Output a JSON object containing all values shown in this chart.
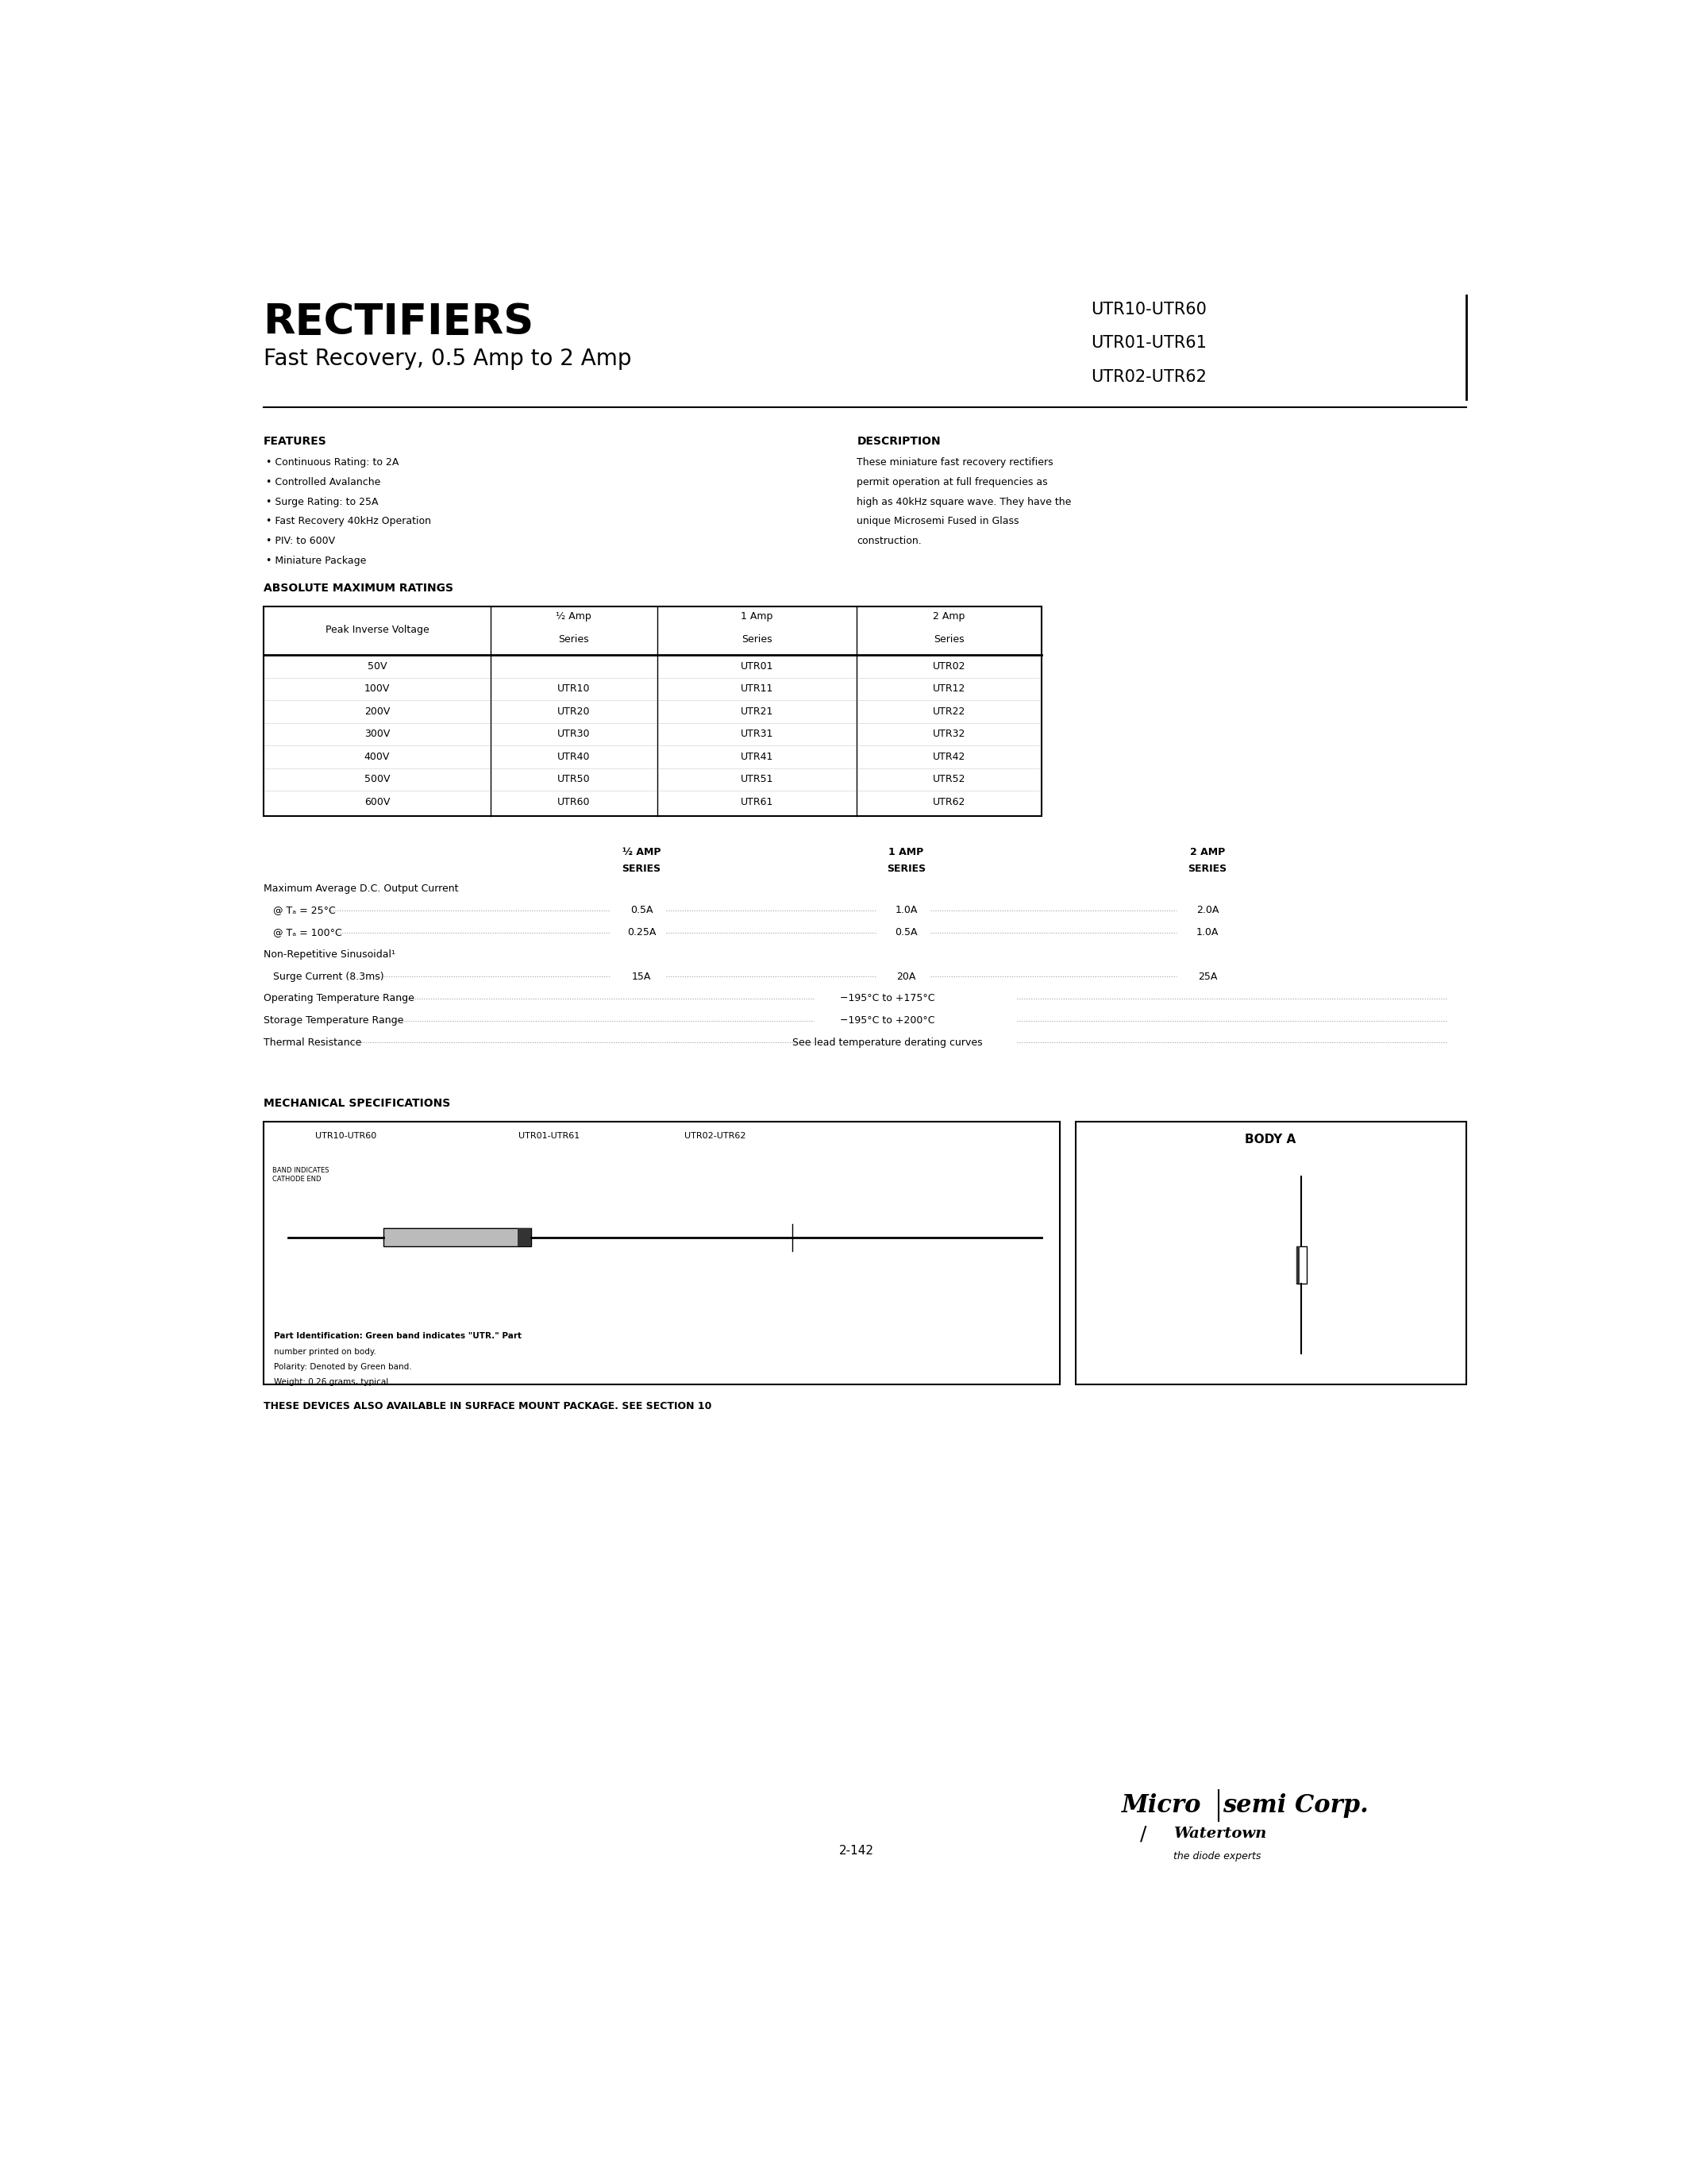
{
  "bg_color": "#ffffff",
  "title_rectifiers": "RECTIFIERS",
  "subtitle": "Fast Recovery, 0.5 Amp to 2 Amp",
  "part_numbers": [
    "UTR10-UTR60",
    "UTR01-UTR61",
    "UTR02-UTR62"
  ],
  "features_title": "FEATURES",
  "features": [
    "Continuous Rating: to 2A",
    "Controlled Avalanche",
    "Surge Rating: to 25A",
    "Fast Recovery 40kHz Operation",
    "PIV: to 600V",
    "Miniature Package"
  ],
  "description_title": "DESCRIPTION",
  "description_text": "These miniature fast recovery rectifiers permit operation at full frequencies as high as 40kHz square wave. They have the unique Microsemi Fused in Glass construction.",
  "abs_max_title": "ABSOLUTE MAXIMUM RATINGS",
  "table_rows": [
    [
      "50V",
      "",
      "UTR01",
      "UTR02"
    ],
    [
      "100V",
      "UTR10",
      "UTR11",
      "UTR12"
    ],
    [
      "200V",
      "UTR20",
      "UTR21",
      "UTR22"
    ],
    [
      "300V",
      "UTR30",
      "UTR31",
      "UTR32"
    ],
    [
      "400V",
      "UTR40",
      "UTR41",
      "UTR42"
    ],
    [
      "500V",
      "UTR50",
      "UTR51",
      "UTR52"
    ],
    [
      "600V",
      "UTR60",
      "UTR61",
      "UTR62"
    ]
  ],
  "mech_title": "MECHANICAL SPECIFICATIONS",
  "body_a_label": "BODY A",
  "page_number": "2-142",
  "surface_mount_note": "THESE DEVICES ALSO AVAILABLE IN SURFACE MOUNT PACKAGE. SEE SECTION 10"
}
